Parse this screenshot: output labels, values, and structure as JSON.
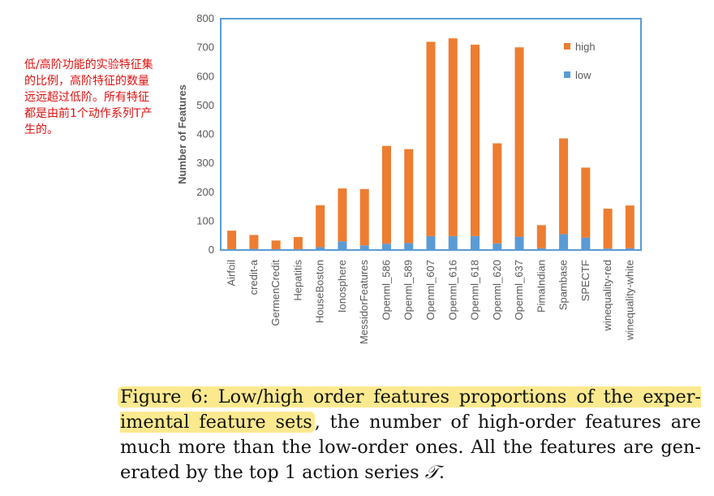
{
  "note": "低/高阶功能的实验特征集的比例，高阶特征的数量远远超过低阶。所有特征都是由前1个动作系列T产生的。",
  "caption": {
    "highlighted": "Figure 6: Low/high order features proportions of the exper-imental feature sets",
    "rest": ", the number of high-order features are much more than the low-order ones. All the features are gen-erated by the top 1 action series ",
    "symbol": "𝒯",
    "end": "."
  },
  "colors": {
    "high": "#ed7d31",
    "low": "#5b9bd5",
    "frame": "#5b9bd5"
  },
  "chart_data": {
    "type": "bar",
    "stacked": true,
    "categories": [
      "Airfoil",
      "credit-a",
      "GermenCredit",
      "Hepatitis",
      "HouseBoston",
      "Ionosphere",
      "MessidorFeatures",
      "Openml_586",
      "Openml_589",
      "Openml_607",
      "Openml_616",
      "Openml_618",
      "Openml_620",
      "Openml_637",
      "PimaIndian",
      "Spambase",
      "SPECTF",
      "winequality-red",
      "winequality-white"
    ],
    "series": [
      {
        "name": "low",
        "values": [
          3,
          4,
          3,
          3,
          10,
          30,
          16,
          22,
          24,
          48,
          48,
          48,
          23,
          46,
          6,
          55,
          43,
          5,
          6
        ]
      },
      {
        "name": "high",
        "values": [
          64,
          48,
          30,
          42,
          145,
          183,
          195,
          338,
          325,
          672,
          684,
          662,
          346,
          655,
          80,
          331,
          242,
          138,
          148
        ]
      }
    ],
    "title": "",
    "xlabel": "",
    "ylabel": "Number of Features",
    "ylim": [
      0,
      800
    ],
    "yticks": [
      0,
      100,
      200,
      300,
      400,
      500,
      600,
      700,
      800
    ],
    "legend": [
      "high",
      "low"
    ],
    "legend_position": "top-right",
    "grid": false
  }
}
